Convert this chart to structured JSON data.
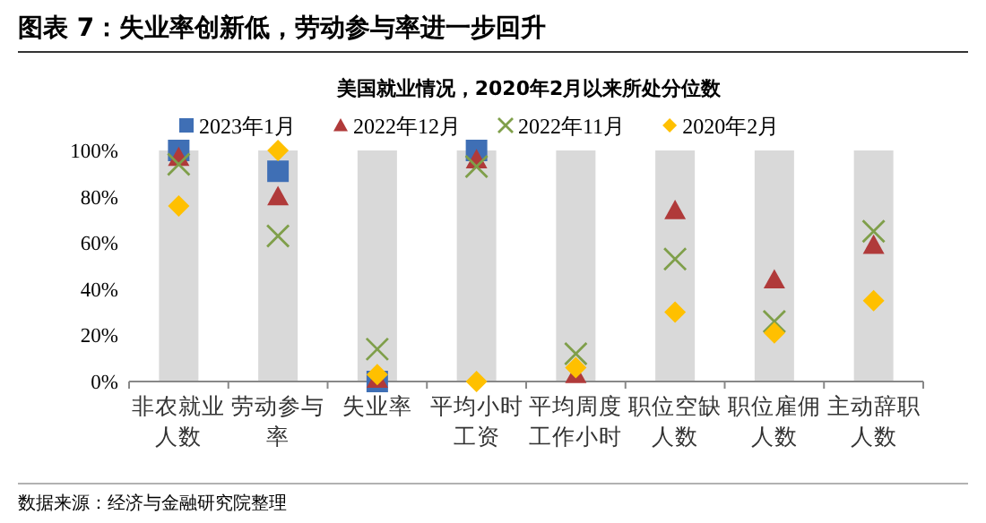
{
  "chart_data": {
    "type": "scatter",
    "title": "图表 7：失业率创新低，劳动参与率进一步回升",
    "subtitle": "美国就业情况，2020年2月以来所处分位数",
    "categories": [
      "非农就业人数",
      "劳动参与率",
      "失业率",
      "平均小时工资",
      "平均周度工作小时",
      "职位空缺人数",
      "职位雇佣人数",
      "主动辞职人数"
    ],
    "ylim": [
      0,
      100
    ],
    "yticks": [
      {
        "value": 0,
        "label": "0%"
      },
      {
        "value": 20,
        "label": "20%"
      },
      {
        "value": 40,
        "label": "40%"
      },
      {
        "value": 60,
        "label": "60%"
      },
      {
        "value": 80,
        "label": "80%"
      },
      {
        "value": 100,
        "label": "100%"
      }
    ],
    "legend": "top",
    "grid": false,
    "series": [
      {
        "type": "bar",
        "color": "#d9d9d9",
        "values": [
          100,
          100,
          100,
          100,
          100,
          100,
          100,
          100
        ]
      },
      {
        "name": "2023年1月",
        "color": "#3f6fb5",
        "marker": "square",
        "values": [
          100,
          91,
          0,
          100,
          null,
          null,
          null,
          null
        ]
      },
      {
        "name": "2022年12月",
        "color": "#b03a3a",
        "marker": "triangle",
        "values": [
          97,
          80,
          1,
          96,
          3,
          74,
          44,
          59
        ]
      },
      {
        "name": "2022年11月",
        "color": "#7f9f4a",
        "marker": "cross",
        "values": [
          94,
          63,
          14,
          93,
          12,
          53,
          26,
          65
        ]
      },
      {
        "name": "2020年2月",
        "color": "#ffc000",
        "marker": "diamond",
        "values": [
          76,
          100,
          3,
          0,
          6,
          30,
          21,
          35
        ]
      }
    ],
    "annotations": [
      "数据来源：经济与金融研究院整理"
    ]
  }
}
